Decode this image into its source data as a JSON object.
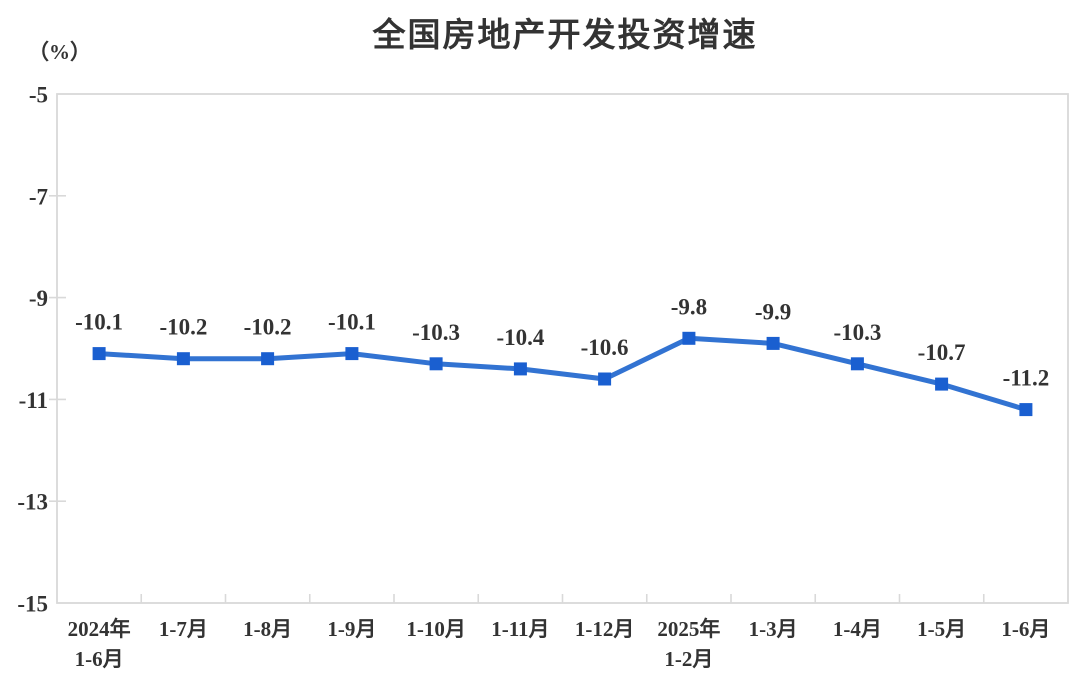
{
  "title": "全国房地产开发投资增速",
  "unit_label": "（%）",
  "colors": {
    "line": "#3273D2",
    "marker": "#1A5FD0",
    "axis": "#D9D9D9",
    "text": "#333333"
  },
  "chart_data": {
    "type": "line",
    "title": "全国房地产开发投资增速",
    "ylabel": "（%）",
    "xlabel": "",
    "categories": [
      "2024年\n1-6月",
      "1-7月",
      "1-8月",
      "1-9月",
      "1-10月",
      "1-11月",
      "1-12月",
      "2025年\n1-2月",
      "1-3月",
      "1-4月",
      "1-5月",
      "1-6月"
    ],
    "series": [
      {
        "name": "全国房地产开发投资增速",
        "values": [
          -10.1,
          -10.2,
          -10.2,
          -10.1,
          -10.3,
          -10.4,
          -10.6,
          -9.8,
          -9.9,
          -10.3,
          -10.7,
          -11.2
        ]
      }
    ],
    "ylim": [
      -15,
      -5
    ],
    "yticks": [
      -5,
      -7,
      -9,
      -11,
      -13,
      -15
    ],
    "grid": false,
    "legend": "none",
    "marker": "square",
    "data_labels": true
  }
}
